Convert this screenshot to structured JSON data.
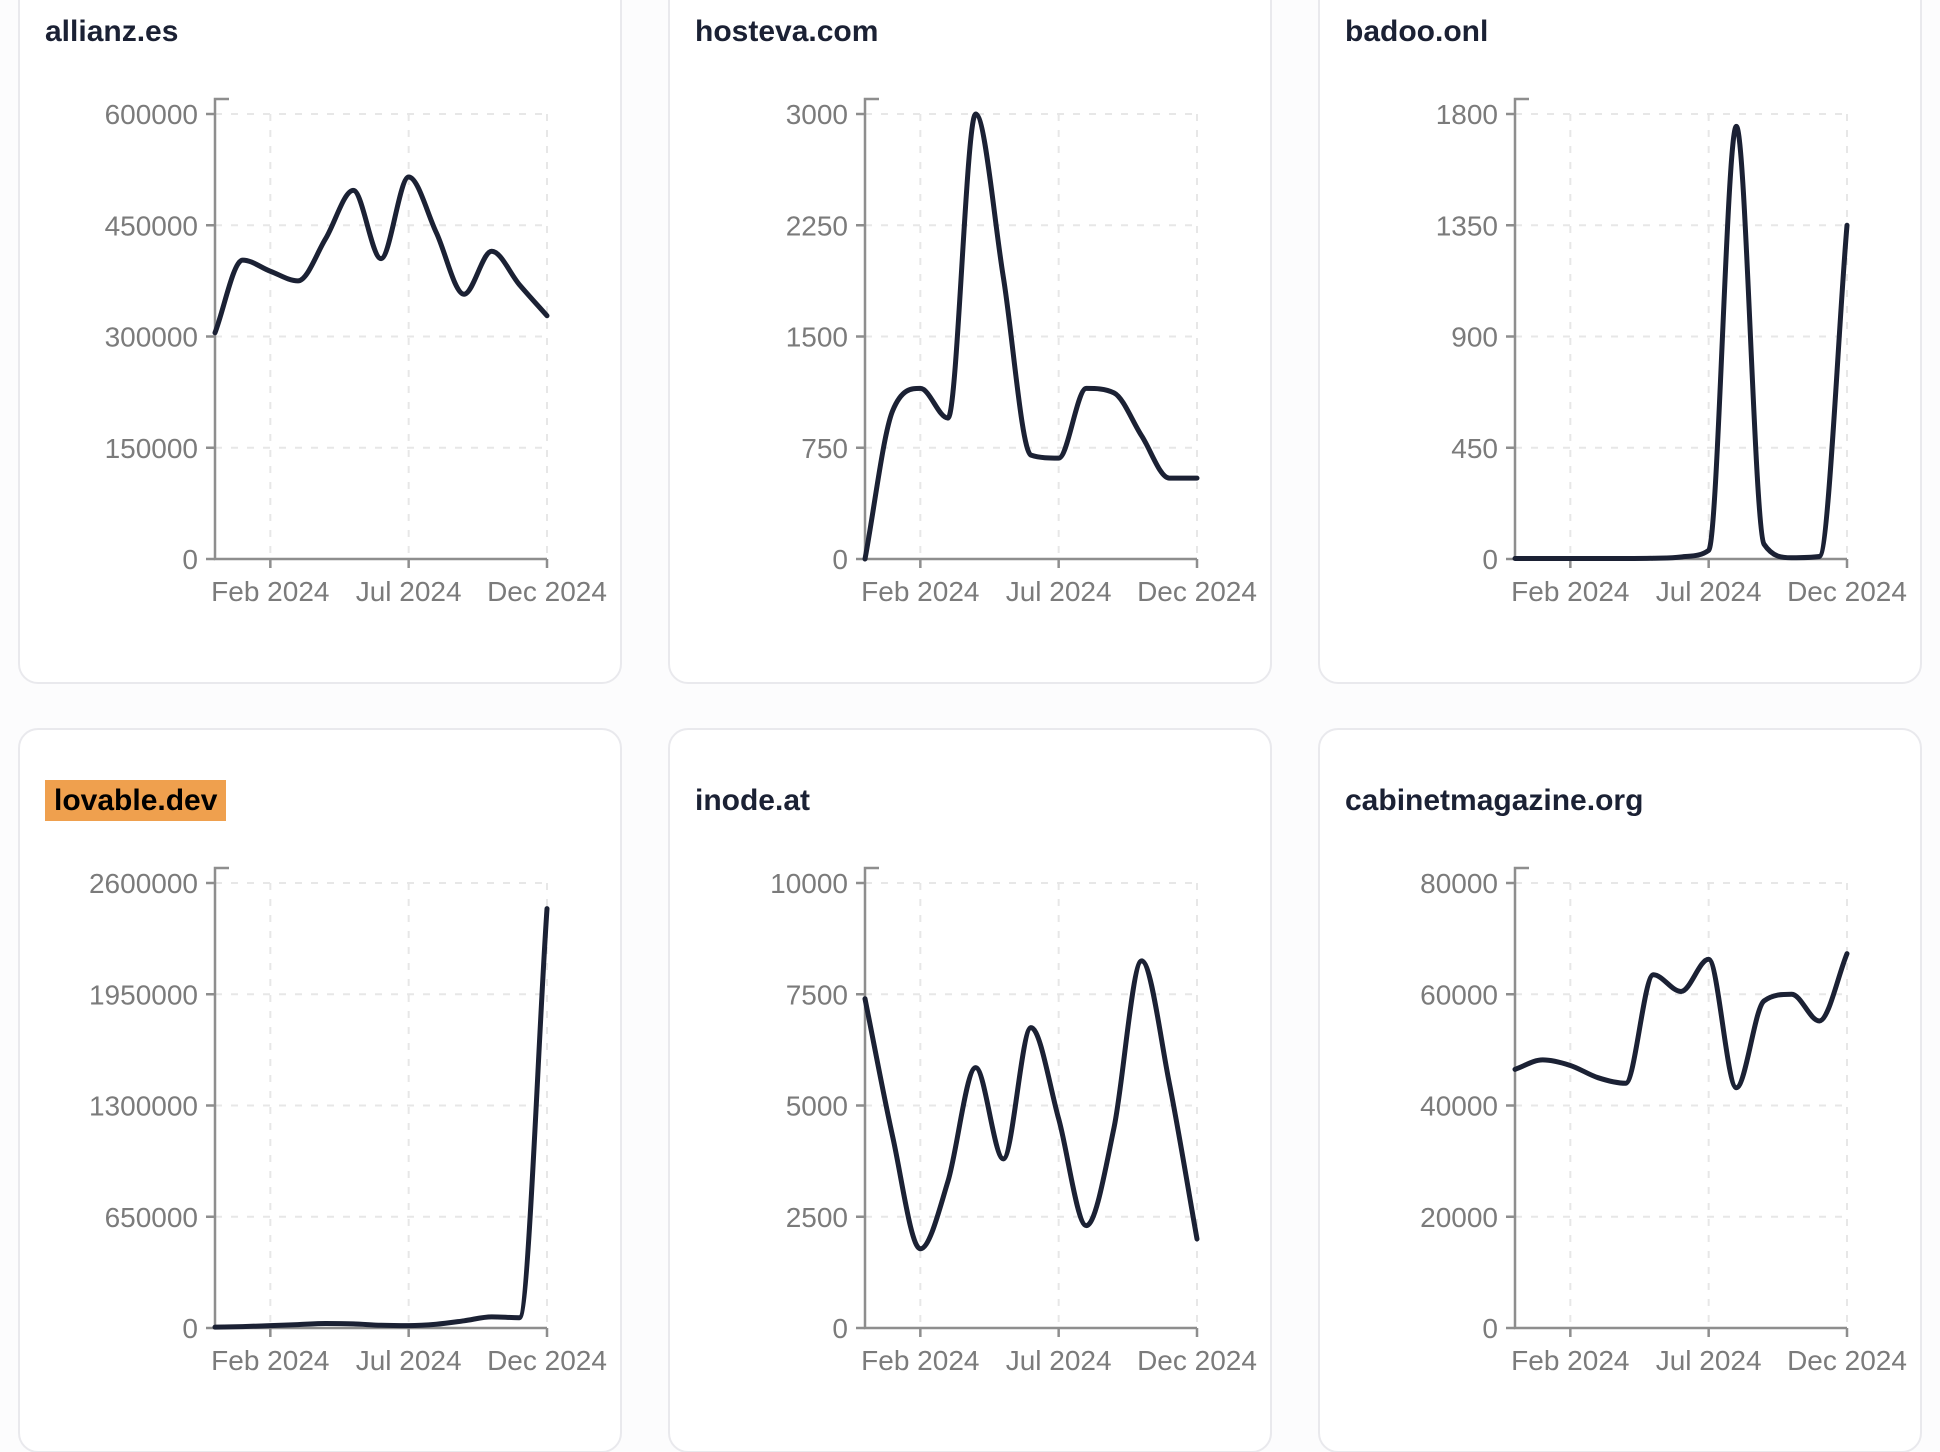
{
  "page": {
    "background": "#fcfcfd",
    "card_background": "#ffffff",
    "card_border_color": "#e9e9ed"
  },
  "style": {
    "line_color": "#1b2134",
    "title_color": "#1b2134",
    "axis_color": "#8e8e8e",
    "tick_text_color": "#7b7b7b",
    "gridline_color": "#e7e7e7",
    "highlight_color": "#efa04e"
  },
  "chart_data": [
    {
      "type": "line",
      "title": "allianz.es",
      "title_highlighted": false,
      "x": [
        "2023-12",
        "2024-01",
        "2024-02",
        "2024-03",
        "2024-04",
        "2024-05",
        "2024-06",
        "2024-07",
        "2024-08",
        "2024-09",
        "2024-10",
        "2024-11",
        "2024-12"
      ],
      "values": [
        305000,
        403000,
        388000,
        375000,
        432000,
        497000,
        405000,
        515000,
        440000,
        357000,
        415000,
        370000,
        328000
      ],
      "ylim": [
        0,
        600000
      ],
      "y_tick_labels": [
        "600000",
        "450000",
        "300000",
        "150000",
        "0"
      ],
      "x_tick_labels": [
        "Feb 2024",
        "Jul 2024",
        "Dec 2024"
      ],
      "x_tick_indices": [
        2,
        7,
        12
      ],
      "grid": "dashed",
      "legend": "none"
    },
    {
      "type": "line",
      "title": "hosteva.com",
      "title_highlighted": false,
      "x": [
        "2023-12",
        "2024-01",
        "2024-02",
        "2024-03",
        "2024-04",
        "2024-05",
        "2024-06",
        "2024-07",
        "2024-08",
        "2024-09",
        "2024-10",
        "2024-11",
        "2024-12"
      ],
      "values": [
        0,
        1000,
        1150,
        950,
        3000,
        1900,
        700,
        680,
        1150,
        1120,
        830,
        545,
        545
      ],
      "ylim": [
        0,
        3000
      ],
      "y_tick_labels": [
        "3000",
        "2250",
        "1500",
        "750",
        "0"
      ],
      "x_tick_labels": [
        "Feb 2024",
        "Jul 2024",
        "Dec 2024"
      ],
      "x_tick_indices": [
        2,
        7,
        12
      ],
      "grid": "dashed",
      "legend": "none"
    },
    {
      "type": "line",
      "title": "badoo.onl",
      "title_highlighted": false,
      "x": [
        "2023-12",
        "2024-01",
        "2024-02",
        "2024-03",
        "2024-04",
        "2024-05",
        "2024-06",
        "2024-07",
        "2024-08",
        "2024-09",
        "2024-10",
        "2024-11",
        "2024-12"
      ],
      "values": [
        2,
        2,
        2,
        2,
        2,
        3,
        8,
        35,
        1750,
        60,
        5,
        10,
        1350
      ],
      "ylim": [
        0,
        1800
      ],
      "y_tick_labels": [
        "1800",
        "1350",
        "900",
        "450",
        "0"
      ],
      "x_tick_labels": [
        "Feb 2024",
        "Jul 2024",
        "Dec 2024"
      ],
      "x_tick_indices": [
        2,
        7,
        12
      ],
      "grid": "dashed",
      "legend": "none"
    },
    {
      "type": "line",
      "title": "lovable.dev",
      "title_highlighted": true,
      "x": [
        "2023-12",
        "2024-01",
        "2024-02",
        "2024-03",
        "2024-04",
        "2024-05",
        "2024-06",
        "2024-07",
        "2024-08",
        "2024-09",
        "2024-10",
        "2024-11",
        "2024-12"
      ],
      "values": [
        5000,
        8000,
        14000,
        20000,
        26000,
        24000,
        16000,
        14000,
        22000,
        42000,
        65000,
        60000,
        2450000
      ],
      "ylim": [
        0,
        2600000
      ],
      "y_tick_labels": [
        "2600000",
        "1950000",
        "1300000",
        "650000",
        "0"
      ],
      "x_tick_labels": [
        "Feb 2024",
        "Jul 2024",
        "Dec 2024"
      ],
      "x_tick_indices": [
        2,
        7,
        12
      ],
      "grid": "dashed",
      "legend": "none"
    },
    {
      "type": "line",
      "title": "inode.at",
      "title_highlighted": false,
      "x": [
        "2023-12",
        "2024-01",
        "2024-02",
        "2024-03",
        "2024-04",
        "2024-05",
        "2024-06",
        "2024-07",
        "2024-08",
        "2024-09",
        "2024-10",
        "2024-11",
        "2024-12"
      ],
      "values": [
        7400,
        4300,
        1780,
        3300,
        5850,
        3800,
        6750,
        4700,
        2300,
        4500,
        8250,
        5500,
        2000
      ],
      "ylim": [
        0,
        10000
      ],
      "y_tick_labels": [
        "10000",
        "7500",
        "5000",
        "2500",
        "0"
      ],
      "x_tick_labels": [
        "Feb 2024",
        "Jul 2024",
        "Dec 2024"
      ],
      "x_tick_indices": [
        2,
        7,
        12
      ],
      "grid": "dashed",
      "legend": "none"
    },
    {
      "type": "line",
      "title": "cabinetmagazine.org",
      "title_highlighted": false,
      "x": [
        "2023-12",
        "2024-01",
        "2024-02",
        "2024-03",
        "2024-04",
        "2024-05",
        "2024-06",
        "2024-07",
        "2024-08",
        "2024-09",
        "2024-10",
        "2024-11",
        "2024-12"
      ],
      "values": [
        46500,
        48200,
        47200,
        45000,
        44000,
        63500,
        60500,
        66300,
        43200,
        58800,
        60000,
        55200,
        67300
      ],
      "ylim": [
        0,
        80000
      ],
      "y_tick_labels": [
        "80000",
        "60000",
        "40000",
        "20000",
        "0"
      ],
      "x_tick_labels": [
        "Feb 2024",
        "Jul 2024",
        "Dec 2024"
      ],
      "x_tick_indices": [
        2,
        7,
        12
      ],
      "grid": "dashed",
      "legend": "none"
    }
  ]
}
